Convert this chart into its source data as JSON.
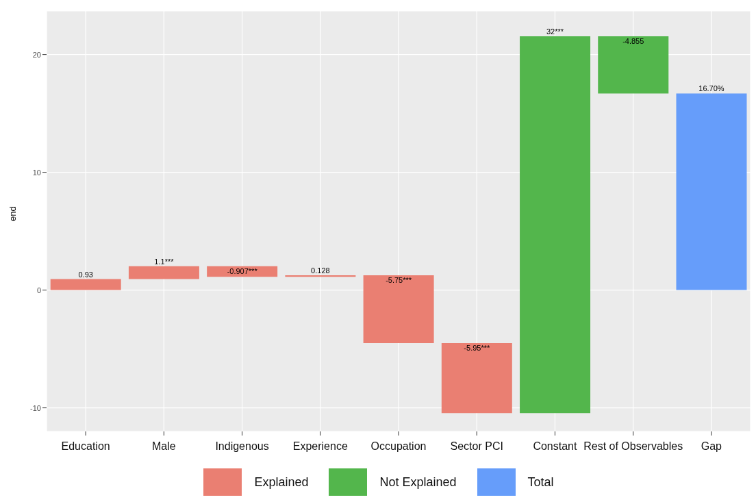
{
  "chart_data": {
    "type": "bar",
    "ylabel": "end",
    "categories": [
      "Education",
      "Male",
      "Indigenous",
      "Experience",
      "Occupation",
      "Sector PCI",
      "Constant",
      "Rest of Observables",
      "Gap"
    ],
    "series": [
      {
        "name": "Explained",
        "color": "#ea7f72",
        "values": [
          0.93,
          1.1,
          -0.907,
          0.128,
          -5.75,
          -5.95,
          null,
          null,
          null
        ],
        "base": [
          0,
          0.93,
          2.03,
          1.123,
          1.251,
          -4.499,
          null,
          null,
          null
        ],
        "value_labels": [
          "0.93",
          "1.1***",
          "-0.907***",
          "0.128",
          "-5.75***",
          "-5.95***",
          null,
          null,
          null
        ]
      },
      {
        "name": "Not Explained",
        "color": "#53b64c",
        "values": [
          null,
          null,
          null,
          null,
          null,
          null,
          32,
          -4.855,
          null
        ],
        "base": [
          null,
          null,
          null,
          null,
          null,
          null,
          -10.449,
          21.551,
          null
        ],
        "value_labels": [
          null,
          null,
          null,
          null,
          null,
          null,
          "32***",
          "-4.855",
          null
        ]
      },
      {
        "name": "Total",
        "color": "#669dfa",
        "values": [
          null,
          null,
          null,
          null,
          null,
          null,
          null,
          null,
          16.7
        ],
        "base": [
          null,
          null,
          null,
          null,
          null,
          null,
          null,
          null,
          0
        ],
        "value_labels": [
          null,
          null,
          null,
          null,
          null,
          null,
          null,
          null,
          "16.70%"
        ]
      }
    ],
    "ylim": [
      -12,
      23.7
    ],
    "yticks": [
      -10,
      0,
      10,
      20
    ],
    "grid": true,
    "legend": "bottom"
  }
}
